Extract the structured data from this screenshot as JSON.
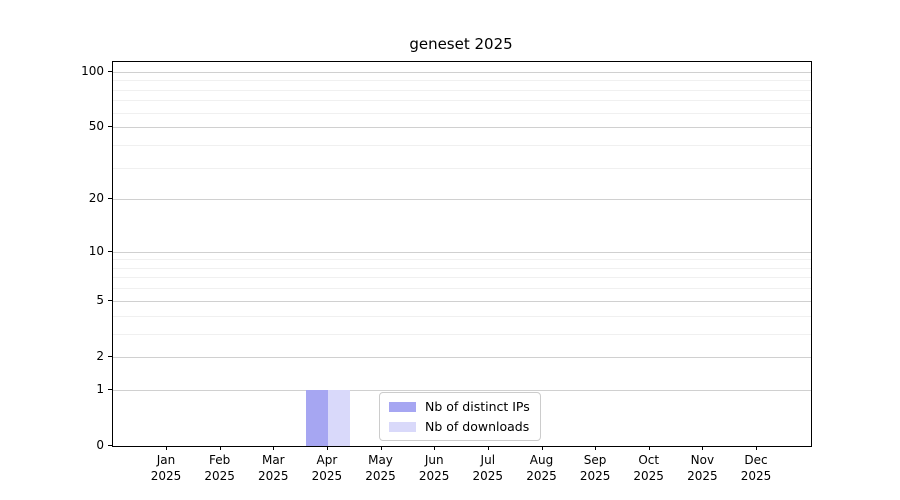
{
  "window": {
    "title": "geneset 2025"
  },
  "chart_data": {
    "type": "bar",
    "title": "geneset 2025",
    "x_categories": [
      "Jan",
      "Feb",
      "Mar",
      "Apr",
      "May",
      "Jun",
      "Jul",
      "Aug",
      "Sep",
      "Oct",
      "Nov",
      "Dec"
    ],
    "x_year": "2025",
    "series": [
      {
        "name": "Nb of distinct IPs",
        "color": "#a6a6f2",
        "values": [
          0,
          0,
          0,
          1,
          0,
          0,
          0,
          0,
          0,
          0,
          0,
          0
        ]
      },
      {
        "name": "Nb of downloads",
        "color": "#d9d9fa",
        "values": [
          0,
          0,
          0,
          1,
          0,
          0,
          0,
          0,
          0,
          0,
          0,
          0
        ]
      }
    ],
    "yscale": "log1p",
    "ylim": [
      0,
      113
    ],
    "yticks": [
      0,
      1,
      2,
      5,
      10,
      20,
      50,
      100
    ],
    "yticks_minor": [
      3,
      4,
      6,
      7,
      8,
      9,
      30,
      40,
      60,
      70,
      80,
      90
    ],
    "grid": "horizontal",
    "legend": {
      "position": "inside-bottom-center"
    }
  },
  "colors": {
    "background": "#ffffff",
    "axis": "#000000",
    "grid_major": "#d0d0d0",
    "grid_minor": "#f0f0f0",
    "legend_border": "#cccccc",
    "text": "#000000"
  }
}
